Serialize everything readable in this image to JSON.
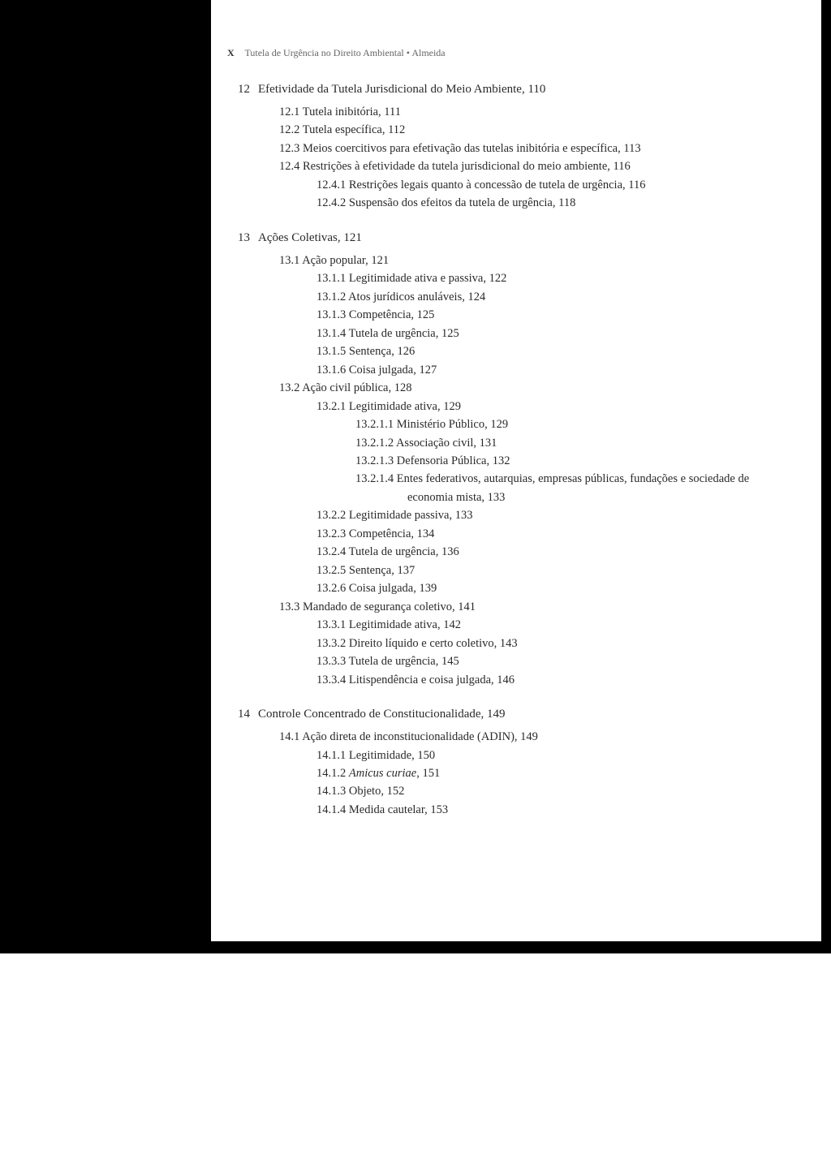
{
  "header": {
    "page_marker": "X",
    "book_title": "Tutela de Urgência no Direito Ambiental",
    "separator": "•",
    "author": "Almeida"
  },
  "chapters": [
    {
      "num": "12",
      "title": "Efetividade da Tutela Jurisdicional do Meio Ambiente,  110",
      "items": [
        {
          "level": 1,
          "text": "12.1  Tutela inibitória,  111"
        },
        {
          "level": 1,
          "text": "12.2  Tutela específica,  112"
        },
        {
          "level": 1,
          "text": "12.3  Meios coercitivos para efetivação das tutelas inibitória e específica,  113"
        },
        {
          "level": 1,
          "text": "12.4  Restrições à efetividade da tutela jurisdicional do meio ambiente,  116"
        },
        {
          "level": 2,
          "text": "12.4.1  Restrições legais quanto à concessão de tutela de urgência,  116"
        },
        {
          "level": 2,
          "text": "12.4.2  Suspensão dos efeitos da tutela de urgência,  118"
        }
      ]
    },
    {
      "num": "13",
      "title": "Ações Coletivas,  121",
      "items": [
        {
          "level": 1,
          "text": "13.1  Ação popular,  121"
        },
        {
          "level": 2,
          "text": "13.1.1  Legitimidade ativa e passiva,  122"
        },
        {
          "level": 2,
          "text": "13.1.2  Atos jurídicos anuláveis,  124"
        },
        {
          "level": 2,
          "text": "13.1.3  Competência,  125"
        },
        {
          "level": 2,
          "text": "13.1.4  Tutela de urgência,  125"
        },
        {
          "level": 2,
          "text": "13.1.5  Sentença,  126"
        },
        {
          "level": 2,
          "text": "13.1.6  Coisa julgada,  127"
        },
        {
          "level": 1,
          "text": "13.2  Ação civil pública,  128"
        },
        {
          "level": 2,
          "text": "13.2.1  Legitimidade ativa,  129"
        },
        {
          "level": 3,
          "text": "13.2.1.1   Ministério Público,  129"
        },
        {
          "level": 3,
          "text": "13.2.1.2   Associação civil,  131"
        },
        {
          "level": 3,
          "text": "13.2.1.3   Defensoria Pública,  132"
        },
        {
          "level": 3,
          "wrap": true,
          "text": "13.2.1.4   Entes federativos, autarquias, empresas públicas, fundações e sociedade de economia mista,  133"
        },
        {
          "level": 2,
          "text": "13.2.2  Legitimidade passiva,  133"
        },
        {
          "level": 2,
          "text": "13.2.3  Competência,  134"
        },
        {
          "level": 2,
          "text": "13.2.4  Tutela de urgência,  136"
        },
        {
          "level": 2,
          "text": "13.2.5  Sentença,  137"
        },
        {
          "level": 2,
          "text": "13.2.6  Coisa julgada,  139"
        },
        {
          "level": 1,
          "text": "13.3  Mandado de segurança coletivo,  141"
        },
        {
          "level": 2,
          "text": "13.3.1  Legitimidade ativa,  142"
        },
        {
          "level": 2,
          "text": "13.3.2  Direito líquido e certo coletivo,  143"
        },
        {
          "level": 2,
          "text": "13.3.3  Tutela de urgência,  145"
        },
        {
          "level": 2,
          "text": "13.3.4  Litispendência e coisa julgada,  146"
        }
      ]
    },
    {
      "num": "14",
      "title": "Controle Concentrado de Constitucionalidade,  149",
      "items": [
        {
          "level": 1,
          "text": "14.1  Ação direta de inconstitucionalidade (ADIN),  149"
        },
        {
          "level": 2,
          "text": "14.1.1  Legitimidade,  150"
        },
        {
          "level": 2,
          "italic_part": "Amicus curiae",
          "prefix": "14.1.2  ",
          "suffix": ",  151"
        },
        {
          "level": 2,
          "text": "14.1.3  Objeto,  152"
        },
        {
          "level": 2,
          "text": "14.1.4  Medida cautelar,  153"
        }
      ]
    }
  ]
}
